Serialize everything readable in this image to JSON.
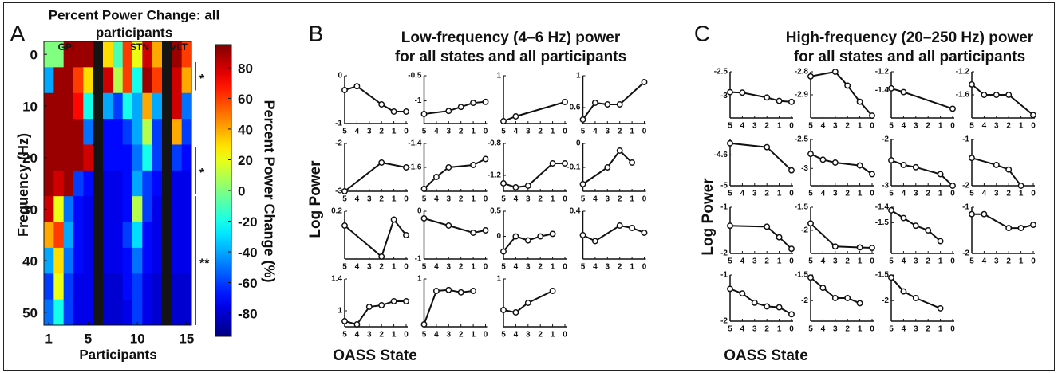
{
  "chart_data": [
    {
      "type": "heatmap",
      "label": "A",
      "title": [
        "Percent Power Change: all",
        "participants"
      ],
      "xlabel": "Participants",
      "ylabel": "Frequency (Hz)",
      "x": [
        1,
        2,
        3,
        4,
        5,
        6,
        7,
        8,
        9,
        10,
        11,
        12,
        13,
        14,
        15
      ],
      "y": [
        0,
        5,
        10,
        15,
        20,
        25,
        30,
        35,
        40,
        45,
        50
      ],
      "values": [
        [
          0,
          0,
          90,
          90,
          90,
          null,
          30,
          -10,
          60,
          20,
          80,
          40,
          null,
          90,
          60
        ],
        [
          -40,
          90,
          90,
          60,
          30,
          null,
          80,
          10,
          60,
          -20,
          90,
          60,
          null,
          80,
          40
        ],
        [
          90,
          90,
          90,
          70,
          -20,
          null,
          -40,
          -60,
          -20,
          -40,
          40,
          -40,
          null,
          80,
          -50
        ],
        [
          90,
          90,
          90,
          90,
          -50,
          null,
          -70,
          -70,
          -60,
          -40,
          10,
          -60,
          null,
          40,
          -60
        ],
        [
          90,
          90,
          90,
          90,
          80,
          null,
          -70,
          -70,
          -70,
          -50,
          -20,
          -60,
          null,
          -60,
          -70
        ],
        [
          90,
          80,
          90,
          -60,
          -70,
          null,
          -75,
          -75,
          -70,
          -40,
          -60,
          -70,
          null,
          -75,
          -75
        ],
        [
          80,
          20,
          -50,
          -70,
          -75,
          null,
          -75,
          -75,
          -70,
          10,
          -60,
          -75,
          null,
          -75,
          -75
        ],
        [
          40,
          60,
          -40,
          -70,
          -75,
          null,
          -75,
          -75,
          -60,
          -30,
          -70,
          -75,
          null,
          -75,
          -75
        ],
        [
          -40,
          30,
          -50,
          -70,
          -75,
          null,
          -75,
          -75,
          -70,
          -50,
          -70,
          -75,
          null,
          -75,
          -75
        ],
        [
          -60,
          20,
          -60,
          -75,
          -75,
          null,
          -80,
          -80,
          -70,
          -60,
          -75,
          -80,
          null,
          -80,
          -80
        ],
        [
          -50,
          -20,
          -60,
          -75,
          -75,
          null,
          -80,
          -80,
          -75,
          -60,
          -75,
          -80,
          null,
          -80,
          -80
        ]
      ],
      "xlim": [
        0.5,
        15.5
      ],
      "ylim": [
        -2.5,
        52.5
      ],
      "xticks": [
        1,
        5,
        10,
        15
      ],
      "yticks": [
        0,
        10,
        20,
        30,
        40,
        50
      ],
      "groups": [
        "GPi",
        "STN",
        "VLT"
      ],
      "colorbar": {
        "label": "Percent Power Change (%)",
        "lim": [
          -95,
          95
        ],
        "ticks": [
          -80,
          -60,
          -40,
          -20,
          0,
          20,
          40,
          60,
          80
        ],
        "colormap": "jet"
      },
      "annotations": [
        {
          "label": "*",
          "range": [
            1.5,
            7
          ]
        },
        {
          "label": "*",
          "range": [
            18,
            27
          ]
        },
        {
          "label": "**",
          "range": [
            27.5,
            52.5
          ]
        }
      ]
    },
    {
      "type": "line",
      "label": "B",
      "title": [
        "Low-frequency (4–6 Hz) power",
        "for all states and all participants"
      ],
      "xlabel": "OASS State",
      "ylabel": "Log Power",
      "xlim": [
        5,
        0
      ],
      "xticks": [
        5,
        4,
        3,
        2,
        1,
        0
      ],
      "color": "#111111",
      "subplots": [
        {
          "x": [
            5,
            4,
            2,
            1,
            0
          ],
          "values": [
            -0.3,
            -0.22,
            -0.6,
            -0.75,
            -0.75
          ],
          "ylim": [
            -1,
            0
          ],
          "yticks": [
            0,
            -1
          ]
        },
        {
          "x": [
            5,
            3,
            2,
            1,
            0
          ],
          "values": [
            -1.26,
            -1.2,
            -1.12,
            -1.04,
            -1.02
          ],
          "ylim": [
            -1.45,
            -0.5
          ],
          "yticks": [
            -0.5,
            -1
          ]
        },
        {
          "x": [
            5,
            4,
            0
          ],
          "values": [
            0.05,
            0.15,
            0.45
          ],
          "ylim": [
            0,
            1
          ],
          "yticks": [
            1
          ]
        },
        {
          "x": [
            5,
            4,
            3,
            2,
            0
          ],
          "values": [
            0.45,
            0.66,
            0.64,
            0.64,
            0.92
          ],
          "ylim": [
            0.4,
            1
          ],
          "yticks": [
            1,
            0.6
          ]
        },
        {
          "x": [
            5,
            2,
            0
          ],
          "values": [
            -3,
            -2.4,
            -2.5
          ],
          "ylim": [
            -3,
            -2
          ],
          "yticks": [
            -2,
            -3
          ]
        },
        {
          "x": [
            5,
            4,
            3,
            1,
            0
          ],
          "values": [
            -1.78,
            -1.68,
            -1.6,
            -1.58,
            -1.53
          ],
          "ylim": [
            -1.8,
            -1.4
          ],
          "yticks": [
            -1.4,
            -1.6
          ]
        },
        {
          "x": [
            5,
            4,
            3,
            1,
            0
          ],
          "values": [
            -1.3,
            -1.35,
            -1.33,
            -1.05,
            -1.05
          ],
          "ylim": [
            -1.4,
            -0.8
          ],
          "yticks": [
            -0.8,
            -1.2
          ]
        },
        {
          "x": [
            5,
            3,
            2,
            1
          ],
          "values": [
            -0.17,
            -0.1,
            -0.03,
            -0.08
          ],
          "ylim": [
            -0.2,
            0
          ],
          "yticks": [
            0,
            -0.1
          ]
        },
        {
          "x": [
            5,
            2,
            1,
            0
          ],
          "values": [
            0.08,
            -0.18,
            0.13,
            0
          ],
          "ylim": [
            -0.2,
            0.2
          ],
          "yticks": [
            0.2
          ]
        },
        {
          "x": [
            5,
            3,
            1,
            0
          ],
          "values": [
            -0.15,
            -0.3,
            -0.45,
            -0.4
          ],
          "ylim": [
            -1,
            0
          ],
          "yticks": [
            0,
            -1
          ]
        },
        {
          "x": [
            5,
            4,
            3,
            2,
            1
          ],
          "values": [
            -0.3,
            0,
            -0.08,
            0,
            0.05
          ],
          "ylim": [
            -0.45,
            0.5
          ],
          "yticks": [
            0.5,
            0
          ]
        },
        {
          "x": [
            5,
            4,
            2,
            1,
            0
          ],
          "values": [
            0.2,
            0.15,
            0.28,
            0.26,
            0.22
          ],
          "ylim": [
            0,
            0.4
          ],
          "yticks": [
            0.4
          ]
        },
        {
          "x": [
            5,
            4,
            3,
            2,
            1,
            0
          ],
          "values": [
            0.87,
            0.83,
            1.05,
            1.07,
            1.12,
            1.12
          ],
          "ylim": [
            0.8,
            1.4
          ],
          "yticks": [
            1.4,
            1
          ]
        },
        {
          "x": [
            5,
            4,
            3,
            2,
            1
          ],
          "values": [
            0.05,
            0.75,
            0.77,
            0.72,
            0.75
          ],
          "ylim": [
            0,
            1
          ],
          "yticks": [
            1
          ]
        },
        {
          "x": [
            5,
            4,
            3,
            1
          ],
          "values": [
            0.35,
            0.3,
            0.5,
            0.75
          ],
          "ylim": [
            0,
            1
          ],
          "yticks": [
            1
          ]
        }
      ]
    },
    {
      "type": "line",
      "label": "C",
      "title": [
        "High-frequency (20–250 Hz) power",
        "for all states and all participants"
      ],
      "xlabel": "OASS State",
      "ylabel": "Log Power",
      "xlim": [
        5,
        0
      ],
      "xticks": [
        5,
        4,
        3,
        2,
        1,
        0
      ],
      "color": "#111111",
      "subplots": [
        {
          "x": [
            5,
            4,
            2,
            1,
            0
          ],
          "values": [
            -2.92,
            -2.93,
            -3.03,
            -3.1,
            -3.12
          ],
          "ylim": [
            -3.45,
            -2.5
          ],
          "yticks": [
            -2.5,
            -3
          ]
        },
        {
          "x": [
            5,
            3,
            2,
            1,
            0
          ],
          "values": [
            -2.82,
            -2.8,
            -2.86,
            -2.93,
            -2.99
          ],
          "ylim": [
            -3,
            -2.8
          ],
          "yticks": [
            -2.8,
            -2.9
          ]
        },
        {
          "x": [
            5,
            4,
            0
          ],
          "values": [
            -1.38,
            -1.42,
            -1.6
          ],
          "ylim": [
            -1.7,
            -1.2
          ],
          "yticks": [
            -1.2,
            -1.4
          ]
        },
        {
          "x": [
            5,
            4,
            3,
            2,
            0
          ],
          "values": [
            -1.42,
            -1.6,
            -1.6,
            -1.6,
            -1.95
          ],
          "ylim": [
            -2,
            -1.2
          ],
          "yticks": [
            -1.2,
            -1.6
          ]
        },
        {
          "x": [
            5,
            2,
            0
          ],
          "values": [
            -4.45,
            -4.5,
            -4.8
          ],
          "ylim": [
            -5,
            -4.4
          ],
          "yticks": [
            -4.6,
            -5
          ]
        },
        {
          "x": [
            5,
            4,
            3,
            1,
            0
          ],
          "values": [
            -2.75,
            -2.85,
            -2.9,
            -2.95,
            -3.1
          ],
          "ylim": [
            -3.3,
            -2.5
          ],
          "yticks": [
            -2.5,
            -3
          ]
        },
        {
          "x": [
            5,
            4,
            3,
            1,
            0
          ],
          "values": [
            -2.45,
            -2.55,
            -2.6,
            -2.75,
            -3
          ],
          "ylim": [
            -3,
            -2
          ],
          "yticks": [
            -2,
            -3
          ]
        },
        {
          "x": [
            5,
            3,
            2,
            1
          ],
          "values": [
            -1.4,
            -1.55,
            -1.65,
            -2
          ],
          "ylim": [
            -2,
            -1
          ],
          "yticks": [
            -1,
            -2
          ]
        },
        {
          "x": [
            5,
            2,
            1,
            0
          ],
          "values": [
            -1.4,
            -1.42,
            -1.65,
            -1.9
          ],
          "ylim": [
            -2,
            -1
          ],
          "yticks": [
            -1,
            -2
          ]
        },
        {
          "x": [
            5,
            3,
            1,
            0
          ],
          "values": [
            -1.85,
            -2.35,
            -2.37,
            -2.38
          ],
          "ylim": [
            -2.5,
            -1.5
          ],
          "yticks": [
            -1.5,
            -2
          ]
        },
        {
          "x": [
            5,
            4,
            3,
            2,
            1
          ],
          "values": [
            -1.42,
            -1.47,
            -1.52,
            -1.55,
            -1.62
          ],
          "ylim": [
            -1.7,
            -1.4
          ],
          "yticks": [
            -1.4,
            -1.5
          ]
        },
        {
          "x": [
            5,
            4,
            2,
            1,
            0
          ],
          "values": [
            -1.15,
            -1.15,
            -1.45,
            -1.45,
            -1.38
          ],
          "ylim": [
            -2,
            -1
          ],
          "yticks": [
            -1,
            -2
          ]
        },
        {
          "x": [
            5,
            4,
            3,
            2,
            1,
            0
          ],
          "values": [
            -1.3,
            -1.4,
            -1.6,
            -1.68,
            -1.7,
            -1.85
          ],
          "ylim": [
            -2,
            -1
          ],
          "yticks": [
            -1,
            -2
          ]
        },
        {
          "x": [
            5,
            4,
            3,
            2,
            1
          ],
          "values": [
            -1.55,
            -1.75,
            -1.95,
            -1.95,
            -2.05
          ],
          "ylim": [
            -2.4,
            -1.5
          ],
          "yticks": [
            -1.5,
            -2
          ]
        },
        {
          "x": [
            5,
            4,
            3,
            1
          ],
          "values": [
            -1.55,
            -1.82,
            -1.95,
            -2.15
          ],
          "ylim": [
            -2.4,
            -1.5
          ],
          "yticks": [
            -1.5,
            -2
          ]
        }
      ]
    }
  ]
}
